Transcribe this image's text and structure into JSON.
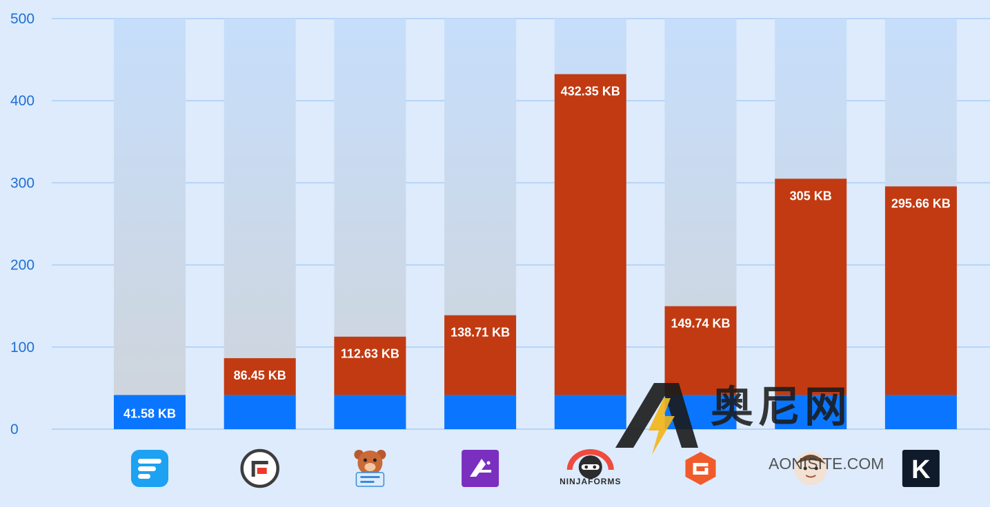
{
  "chart_data": {
    "type": "bar",
    "stacked": true,
    "categories": [
      "Fluent Forms",
      "Formidable Forms",
      "WPForms",
      "Forminator",
      "Ninja Forms",
      "Gravity Forms",
      "Everest Forms",
      "Kadence Forms"
    ],
    "totals": [
      41.58,
      86.45,
      112.63,
      138.71,
      432.35,
      149.74,
      305,
      295.66
    ],
    "labels": [
      "41.58 KB",
      "86.45 KB",
      "112.63 KB",
      "138.71 KB",
      "432.35 KB",
      "149.74 KB",
      "305 KB",
      "295.66 KB"
    ],
    "series": [
      {
        "values": [
          41.58,
          41.58,
          41.58,
          41.58,
          41.58,
          41.58,
          41.58,
          41.58
        ],
        "color": "#0a76ff"
      },
      {
        "values": [
          0,
          44.87,
          71.05,
          97.13,
          390.77,
          108.16,
          263.42,
          254.08
        ],
        "color": "#c23a12"
      }
    ],
    "ylim": [
      0,
      500
    ],
    "yticks": [
      0,
      100,
      200,
      300,
      400,
      500
    ],
    "grid": true,
    "legend": "none",
    "colors": {
      "background": "#ddebfc",
      "track_top": "#c6defb",
      "track_bottom": "#cfd4da",
      "grid": "#a9cdf6",
      "tick": "#1f6fd6"
    },
    "icons": [
      "fluent-forms-logo-icon",
      "formidable-forms-logo-icon",
      "wpforms-bear-logo-icon",
      "forminator-logo-icon",
      "ninja-forms-logo-icon",
      "gravity-forms-logo-icon",
      "everest-forms-avatar-icon",
      "kadence-logo-icon"
    ],
    "logo_text": {
      "ninja": "NINJAFORMS",
      "kadence": "K"
    }
  },
  "watermark": {
    "cn": "奥尼网",
    "domain": "AONISITE.COM"
  }
}
